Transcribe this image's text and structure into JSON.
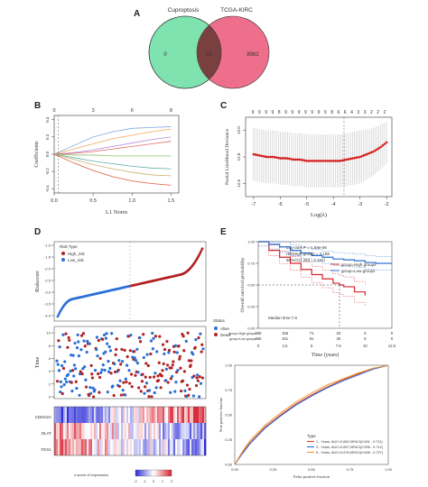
{
  "panels": {
    "a": "A",
    "b": "B",
    "c": "C",
    "d": "D",
    "e": "E"
  },
  "venn": {
    "left_label": "Cuproptosis",
    "right_label": "TCGA-KIRC",
    "left_only": "0",
    "overlap": "10",
    "right_only": "8962",
    "colors": {
      "left": "#7fe3b0",
      "right": "#ee6f8b",
      "overlap": "#7a3f3f"
    }
  },
  "lasso_path": {
    "top_ticks": [
      "0",
      "3",
      "6",
      "8"
    ],
    "x_ticks": [
      "0.0",
      "0.5",
      "1.0",
      "1.5"
    ],
    "y_ticks": [
      "0.4",
      "0.2",
      "0.0",
      "-0.2",
      "-0.4"
    ],
    "xlabel": "L1 Norm",
    "ylabel": "Coefficients"
  },
  "lasso_cv": {
    "top_ticks": [
      "9",
      "9",
      "9",
      "9",
      "8",
      "9",
      "9",
      "9",
      "9",
      "9",
      "9",
      "9",
      "8",
      "6",
      "6",
      "4",
      "3",
      "3",
      "2",
      "2",
      "2"
    ],
    "x_ticks": [
      "-7",
      "-6",
      "-5",
      "-4",
      "-3",
      "-2"
    ],
    "y_ticks": [
      "13.0",
      "12.8",
      "12.6"
    ],
    "xlabel": "Log(λ)",
    "ylabel": "Partial Likelihood Deviance"
  },
  "risk": {
    "legend_title": "Risk Type",
    "legend_high": "High_risk",
    "legend_low": "Low_risk",
    "ylabel_score": "Riskscore",
    "y_ticks_score": [
      "-1.0",
      "-1.5",
      "-2.0",
      "-2.5",
      "-3.0",
      "-3.5",
      "-4.0"
    ],
    "status_title": "Status",
    "status_alive": "Alive",
    "status_dead": "Dead",
    "ylabel_time": "Time",
    "y_ticks_time": [
      "10",
      "8",
      "6",
      "4",
      "2",
      "0"
    ],
    "genes": [
      "CDKN2A",
      "DLAT",
      "FDX1"
    ],
    "heat_label": "z-score of expression",
    "heat_ticks": [
      "-2",
      "-1",
      "0",
      "1",
      "2"
    ]
  },
  "km": {
    "stats": "Log-rank P = 1.68e-06",
    "hr": "HR(High group) = 2.158",
    "ci": "95%CI(1.453 - 3.182)",
    "legend_high": "group=High groups",
    "legend_low": "group=Low groups",
    "median": "Median time:7.6",
    "xlabel": "Time (years)",
    "ylabel": "Overall survival probability",
    "x_ticks": [
      "0",
      "2.5",
      "5",
      "7.5",
      "10",
      "12.5"
    ],
    "y_ticks": [
      "1.00",
      "0.75",
      "0.50",
      "0.25",
      "0.00"
    ],
    "risk_rows": [
      {
        "label": "group=High groups",
        "values": [
          "266",
          "156",
          "71",
          "23",
          "5",
          "0"
        ]
      },
      {
        "label": "group=Low groups",
        "values": [
          "266",
          "161",
          "81",
          "25",
          "8",
          "0"
        ]
      }
    ]
  },
  "roc": {
    "xlabel": "False positive fraction",
    "ylabel": "True positive fraction",
    "x_ticks": [
      "0.00",
      "0.25",
      "0.50",
      "0.75",
      "1.00"
    ],
    "y_ticks": [
      "0.00",
      "0.25",
      "0.50",
      "0.75",
      "1.00"
    ],
    "legend_title": "Type",
    "legend": [
      "1 - Years, AUC=0.662,95%CI(0.601 - 0.711)",
      "3 - Years, AUC=0.657,95%CI(0.595 - 0.712)",
      "5 - Years, AUC=0.676,95%CI(0.606 - 0.727)"
    ],
    "colors": [
      "#d94a2a",
      "#3a6fd8",
      "#f29a3a"
    ]
  },
  "chart_data": [
    {
      "type": "line",
      "panel": "B",
      "xlabel": "L1 Norm",
      "ylabel": "Coefficients",
      "xlim": [
        0,
        1.6
      ],
      "ylim": [
        -0.45,
        0.45
      ],
      "x": [
        0,
        0.25,
        0.5,
        0.75,
        1.0,
        1.25,
        1.5
      ],
      "series": [
        {
          "values": [
            0,
            0.1,
            0.2,
            0.26,
            0.3,
            0.31,
            0.32
          ],
          "color": "#7fa8e0"
        },
        {
          "values": [
            0,
            0.06,
            0.12,
            0.18,
            0.22,
            0.26,
            0.29
          ],
          "color": "#f3a55a"
        },
        {
          "values": [
            0,
            0.02,
            0.05,
            0.09,
            0.13,
            0.17,
            0.2
          ],
          "color": "#b48ad8"
        },
        {
          "values": [
            0,
            0.01,
            0.03,
            0.06,
            0.09,
            0.12,
            0.15
          ],
          "color": "#e06a6a"
        },
        {
          "values": [
            0,
            -0.01,
            -0.01,
            -0.02,
            -0.02,
            -0.02,
            -0.02
          ],
          "color": "#8fbf6f"
        },
        {
          "values": [
            0,
            -0.04,
            -0.08,
            -0.11,
            -0.14,
            -0.16,
            -0.17
          ],
          "color": "#5fb0a8"
        },
        {
          "values": [
            0,
            -0.06,
            -0.12,
            -0.17,
            -0.21,
            -0.24,
            -0.25
          ],
          "color": "#c7b36a"
        },
        {
          "values": [
            0,
            -0.1,
            -0.19,
            -0.26,
            -0.31,
            -0.34,
            -0.36
          ],
          "color": "#e05a3a"
        }
      ]
    },
    {
      "type": "scatter",
      "panel": "C",
      "xlabel": "Log(λ)",
      "ylabel": "Partial Likelihood Deviance",
      "xlim": [
        -7.3,
        -1.8
      ],
      "ylim": [
        12.5,
        13.1
      ],
      "x": [
        -7.0,
        -6.75,
        -6.5,
        -6.25,
        -6.0,
        -5.75,
        -5.5,
        -5.25,
        -5.0,
        -4.75,
        -4.5,
        -4.25,
        -4.0,
        -3.75,
        -3.5,
        -3.25,
        -3.0,
        -2.75,
        -2.5,
        -2.25,
        -2.0
      ],
      "y": [
        12.82,
        12.81,
        12.8,
        12.8,
        12.79,
        12.79,
        12.78,
        12.78,
        12.77,
        12.77,
        12.77,
        12.77,
        12.77,
        12.77,
        12.78,
        12.79,
        12.8,
        12.82,
        12.84,
        12.87,
        12.91
      ],
      "error_upper": [
        13.02,
        13.01,
        13.0,
        13.0,
        12.99,
        12.99,
        12.98,
        12.98,
        12.97,
        12.97,
        12.97,
        12.97,
        12.97,
        12.97,
        12.98,
        12.99,
        13.0,
        13.01,
        13.02,
        13.04,
        13.07
      ],
      "error_lower": [
        12.62,
        12.61,
        12.6,
        12.6,
        12.59,
        12.59,
        12.58,
        12.58,
        12.57,
        12.57,
        12.57,
        12.57,
        12.57,
        12.57,
        12.58,
        12.59,
        12.6,
        12.63,
        12.66,
        12.7,
        12.75
      ],
      "vline": -3.6
    },
    {
      "type": "line",
      "panel": "E-KM",
      "xlabel": "Time (years)",
      "ylabel": "Overall survival probability",
      "xlim": [
        0,
        12.5
      ],
      "ylim": [
        0,
        1
      ],
      "series": [
        {
          "name": "group=High groups",
          "x": [
            0,
            1,
            2,
            3,
            4,
            5,
            6,
            7,
            7.6,
            8,
            9,
            10
          ],
          "values": [
            1.0,
            0.9,
            0.82,
            0.75,
            0.68,
            0.62,
            0.57,
            0.52,
            0.5,
            0.48,
            0.42,
            0.38
          ]
        },
        {
          "name": "group=Low groups",
          "x": [
            0,
            1,
            2,
            3,
            4,
            5,
            6,
            7,
            8,
            9,
            10,
            11,
            12.5
          ],
          "values": [
            1.0,
            0.97,
            0.94,
            0.9,
            0.87,
            0.84,
            0.82,
            0.8,
            0.79,
            0.78,
            0.76,
            0.75,
            0.75
          ]
        }
      ]
    },
    {
      "type": "line",
      "panel": "E-ROC",
      "xlabel": "False positive fraction",
      "ylabel": "True positive fraction",
      "xlim": [
        0,
        1
      ],
      "ylim": [
        0,
        1
      ],
      "series": [
        {
          "name": "1 - Years, AUC=0.662,95%CI(0.601 - 0.711)",
          "x": [
            0,
            0.05,
            0.1,
            0.2,
            0.3,
            0.4,
            0.5,
            0.6,
            0.7,
            0.8,
            0.9,
            1.0
          ],
          "values": [
            0,
            0.12,
            0.22,
            0.38,
            0.5,
            0.61,
            0.7,
            0.78,
            0.85,
            0.91,
            0.96,
            1.0
          ]
        },
        {
          "name": "3 - Years, AUC=0.657,95%CI(0.595 - 0.712)",
          "x": [
            0,
            0.05,
            0.1,
            0.2,
            0.3,
            0.4,
            0.5,
            0.6,
            0.7,
            0.8,
            0.9,
            1.0
          ],
          "values": [
            0,
            0.11,
            0.21,
            0.37,
            0.49,
            0.6,
            0.69,
            0.77,
            0.84,
            0.9,
            0.96,
            1.0
          ]
        },
        {
          "name": "5 - Years, AUC=0.676,95%CI(0.606 - 0.727)",
          "x": [
            0,
            0.05,
            0.1,
            0.2,
            0.3,
            0.4,
            0.5,
            0.6,
            0.7,
            0.8,
            0.9,
            1.0
          ],
          "values": [
            0,
            0.13,
            0.24,
            0.4,
            0.52,
            0.63,
            0.72,
            0.8,
            0.86,
            0.92,
            0.97,
            1.0
          ]
        }
      ]
    }
  ]
}
